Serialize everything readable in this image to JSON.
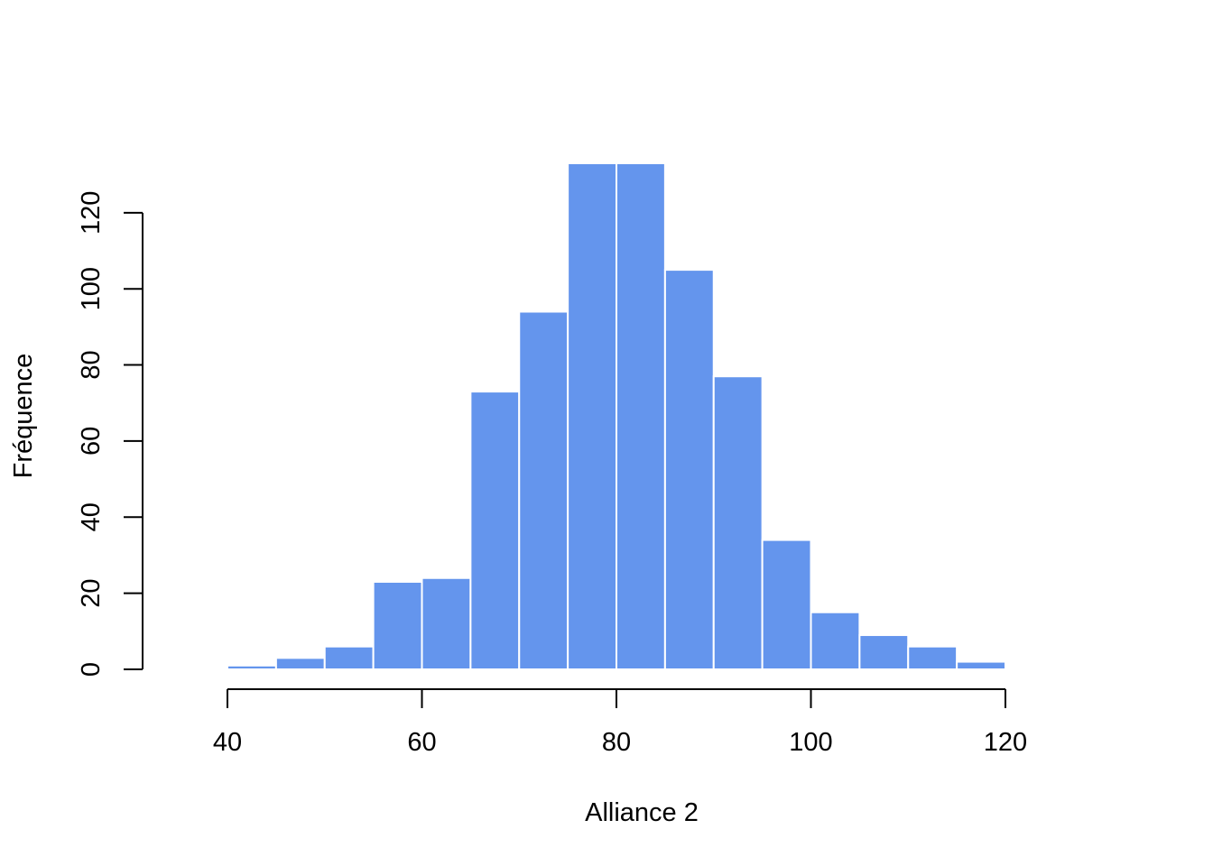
{
  "colors": {
    "bar_fill": "#6495ED",
    "bar_border": "#FFFFFF",
    "axis": "#000000",
    "background": "#FFFFFF"
  },
  "chart_data": {
    "type": "bar",
    "subtype": "histogram",
    "title": "",
    "xlabel": "Alliance 2",
    "ylabel": "Fréquence",
    "bin_width": 5,
    "bins": [
      {
        "start": 40,
        "end": 45,
        "count": 1
      },
      {
        "start": 45,
        "end": 50,
        "count": 3
      },
      {
        "start": 50,
        "end": 55,
        "count": 6
      },
      {
        "start": 55,
        "end": 60,
        "count": 23
      },
      {
        "start": 60,
        "end": 65,
        "count": 24
      },
      {
        "start": 65,
        "end": 70,
        "count": 73
      },
      {
        "start": 70,
        "end": 75,
        "count": 94
      },
      {
        "start": 75,
        "end": 80,
        "count": 133
      },
      {
        "start": 80,
        "end": 85,
        "count": 133
      },
      {
        "start": 85,
        "end": 90,
        "count": 105
      },
      {
        "start": 90,
        "end": 95,
        "count": 77
      },
      {
        "start": 95,
        "end": 100,
        "count": 34
      },
      {
        "start": 100,
        "end": 105,
        "count": 15
      },
      {
        "start": 105,
        "end": 110,
        "count": 9
      },
      {
        "start": 110,
        "end": 115,
        "count": 6
      },
      {
        "start": 115,
        "end": 120,
        "count": 2
      }
    ],
    "xlim": [
      40,
      120
    ],
    "ylim": [
      0,
      133
    ],
    "xticks": [
      40,
      60,
      80,
      100,
      120
    ],
    "yticks": [
      0,
      20,
      40,
      60,
      80,
      100,
      120
    ],
    "grid": false,
    "legend": "none"
  }
}
